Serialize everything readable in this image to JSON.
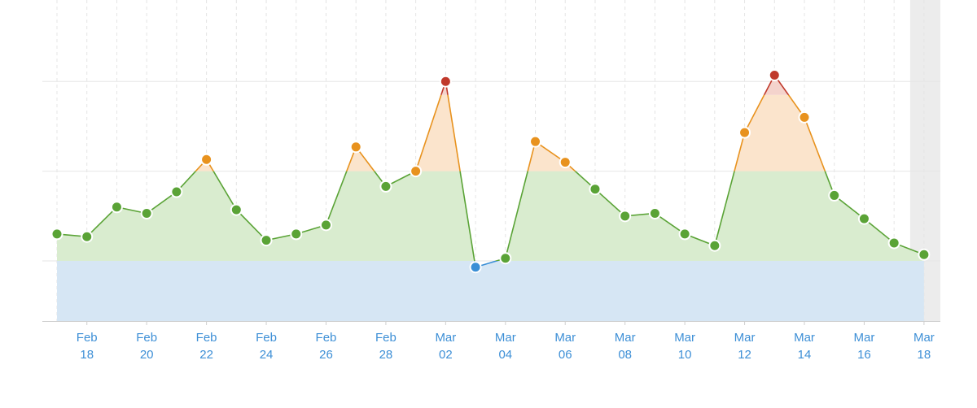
{
  "chart_data": {
    "type": "area",
    "title": "",
    "xlabel": "",
    "ylabel": "",
    "x_labels": [
      {
        "index": 1,
        "month": "Feb",
        "day": "18"
      },
      {
        "index": 3,
        "month": "Feb",
        "day": "20"
      },
      {
        "index": 5,
        "month": "Feb",
        "day": "22"
      },
      {
        "index": 7,
        "month": "Feb",
        "day": "24"
      },
      {
        "index": 9,
        "month": "Feb",
        "day": "26"
      },
      {
        "index": 11,
        "month": "Feb",
        "day": "28"
      },
      {
        "index": 13,
        "month": "Mar",
        "day": "02"
      },
      {
        "index": 15,
        "month": "Mar",
        "day": "04"
      },
      {
        "index": 17,
        "month": "Mar",
        "day": "06"
      },
      {
        "index": 19,
        "month": "Mar",
        "day": "08"
      },
      {
        "index": 21,
        "month": "Mar",
        "day": "10"
      },
      {
        "index": 23,
        "month": "Mar",
        "day": "12"
      },
      {
        "index": 25,
        "month": "Mar",
        "day": "14"
      },
      {
        "index": 27,
        "month": "Mar",
        "day": "16"
      },
      {
        "index": 29,
        "month": "Mar",
        "day": "18"
      }
    ],
    "dates": [
      "Feb 17",
      "Feb 18",
      "Feb 19",
      "Feb 20",
      "Feb 21",
      "Feb 22",
      "Feb 23",
      "Feb 24",
      "Feb 25",
      "Feb 26",
      "Feb 27",
      "Feb 28",
      "Mar 01",
      "Mar 02",
      "Mar 03",
      "Mar 04",
      "Mar 05",
      "Mar 06",
      "Mar 07",
      "Mar 08",
      "Mar 09",
      "Mar 10",
      "Mar 11",
      "Mar 12",
      "Mar 13",
      "Mar 14",
      "Mar 15",
      "Mar 16",
      "Mar 17",
      "Mar 18"
    ],
    "values": [
      4.3,
      4.27,
      4.6,
      4.53,
      4.77,
      5.13,
      4.57,
      4.23,
      4.3,
      4.4,
      5.27,
      4.83,
      5.0,
      6.0,
      3.93,
      4.03,
      5.33,
      5.1,
      4.8,
      4.5,
      4.53,
      4.3,
      4.17,
      5.43,
      6.07,
      5.6,
      4.73,
      4.47,
      4.2,
      4.07
    ],
    "ylim": [
      3.33,
      6.5
    ],
    "bands": [
      {
        "from": 3.33,
        "to": 4.0,
        "color": "#3a8fd6",
        "fill": "#d6e6f4"
      },
      {
        "from": 4.0,
        "to": 5.0,
        "color": "#5aa336",
        "fill": "#d9eccf"
      },
      {
        "from": 5.0,
        "to": 5.85,
        "color": "#e8921e",
        "fill": "#fbe4cc"
      },
      {
        "from": 5.85,
        "to": 6.5,
        "color": "#c0392b",
        "fill": "#f4d3cc"
      }
    ],
    "gridlines_y": [
      4.0,
      5.0,
      6.0
    ],
    "grid": true,
    "colors": {
      "tick_label": "#3d8fd6",
      "highlight_column": "#ececec"
    }
  }
}
